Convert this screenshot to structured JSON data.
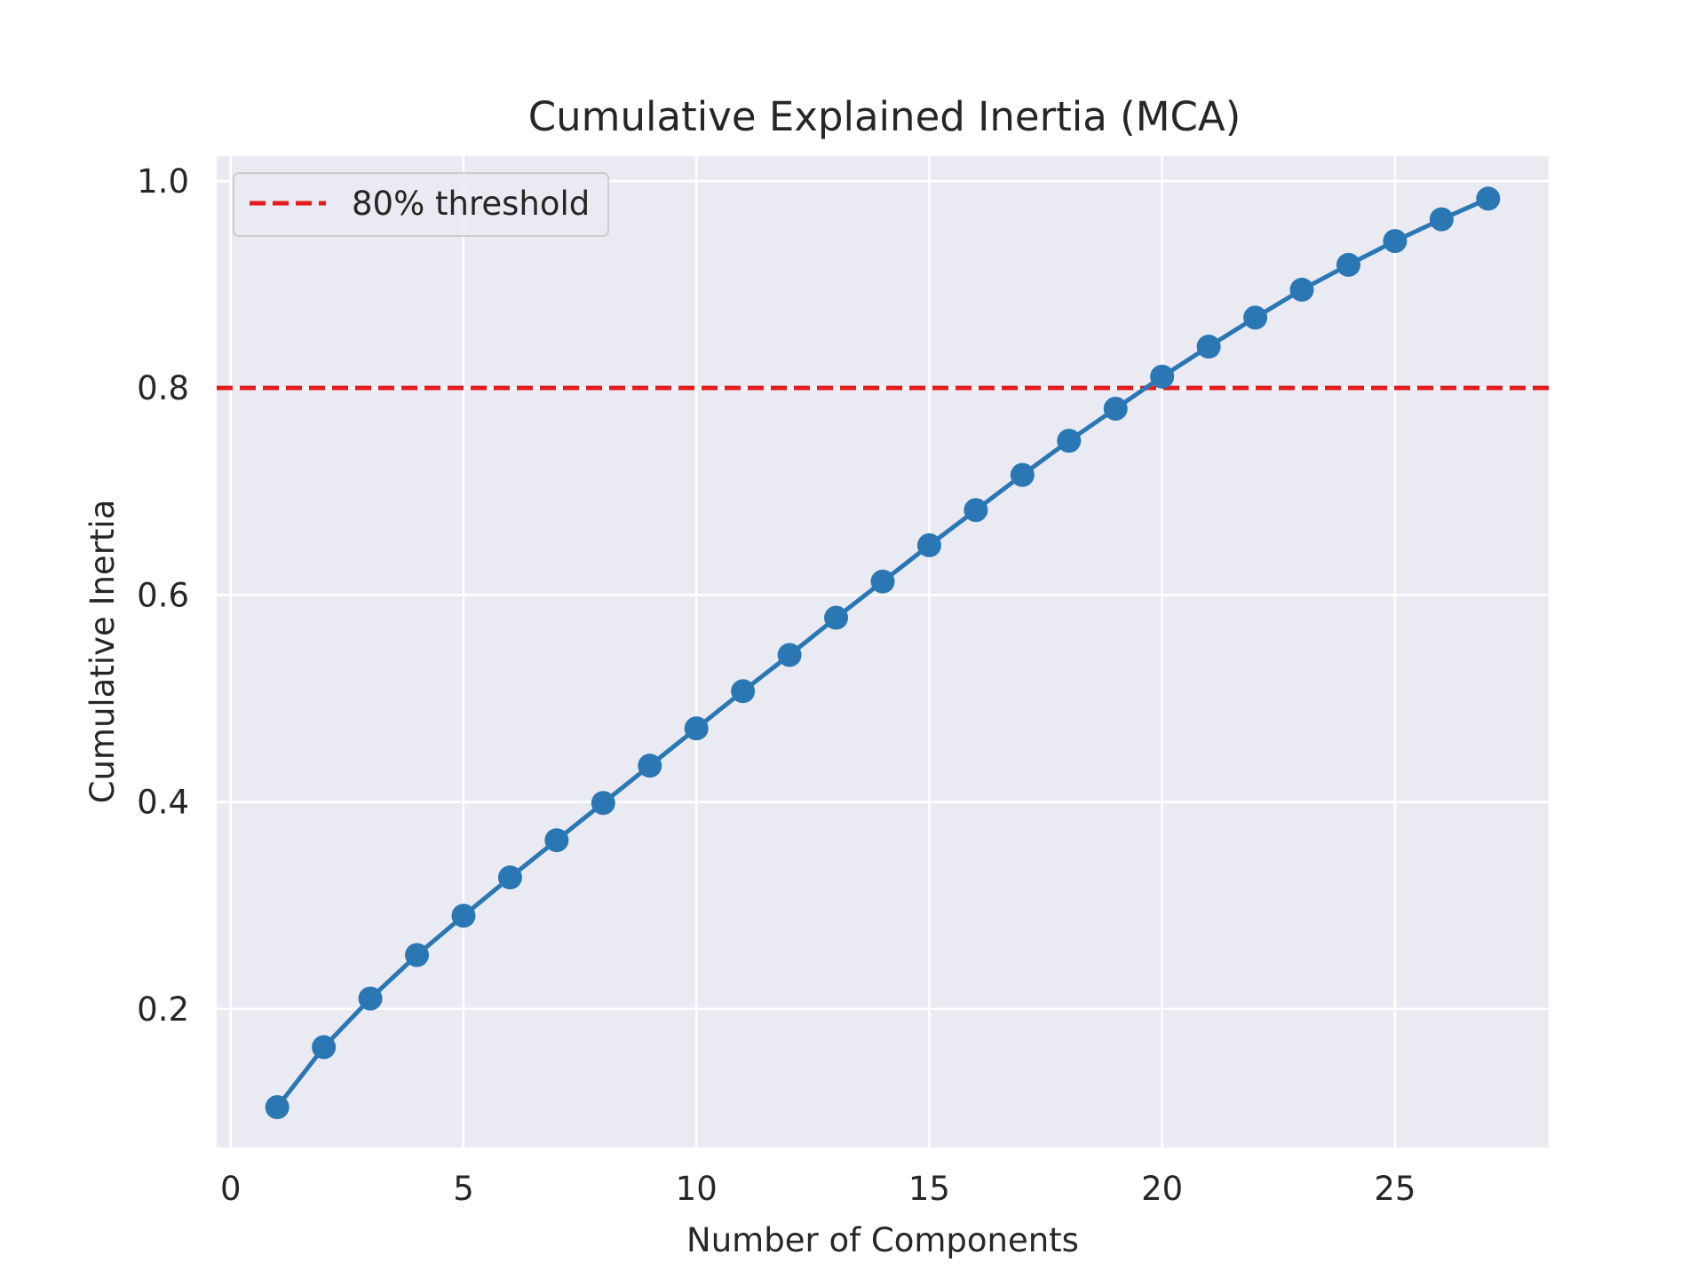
{
  "chart_data": {
    "type": "line",
    "title": "Cumulative Explained Inertia (MCA)",
    "xlabel": "Number of Components",
    "ylabel": "Cumulative Inertia",
    "xlim": [
      -0.3,
      28.3
    ],
    "ylim": [
      0.066,
      1.024
    ],
    "xticks": [
      0,
      5,
      10,
      15,
      20,
      25
    ],
    "xtick_labels": [
      "0",
      "5",
      "10",
      "15",
      "20",
      "25"
    ],
    "yticks": [
      0.2,
      0.4,
      0.6,
      0.8,
      1.0
    ],
    "ytick_labels": [
      "0.2",
      "0.4",
      "0.6",
      "0.8",
      "1.0"
    ],
    "grid": true,
    "legend_position": "top-left",
    "background_color": "#eaeaf2",
    "series": [
      {
        "color": "#2a77b4",
        "marker": "circle",
        "x": [
          1,
          2,
          3,
          4,
          5,
          6,
          7,
          8,
          9,
          10,
          11,
          12,
          13,
          14,
          15,
          16,
          17,
          18,
          19,
          20,
          21,
          22,
          23,
          24,
          25,
          26,
          27
        ],
        "values": [
          0.105,
          0.163,
          0.21,
          0.252,
          0.29,
          0.327,
          0.363,
          0.399,
          0.435,
          0.471,
          0.507,
          0.542,
          0.578,
          0.613,
          0.648,
          0.682,
          0.716,
          0.749,
          0.78,
          0.811,
          0.84,
          0.868,
          0.895,
          0.919,
          0.942,
          0.963,
          0.983
        ]
      }
    ],
    "reference_lines": [
      {
        "name": "80% threshold",
        "y": 0.8,
        "color": "#e41a1c",
        "style": "dashed"
      }
    ]
  }
}
